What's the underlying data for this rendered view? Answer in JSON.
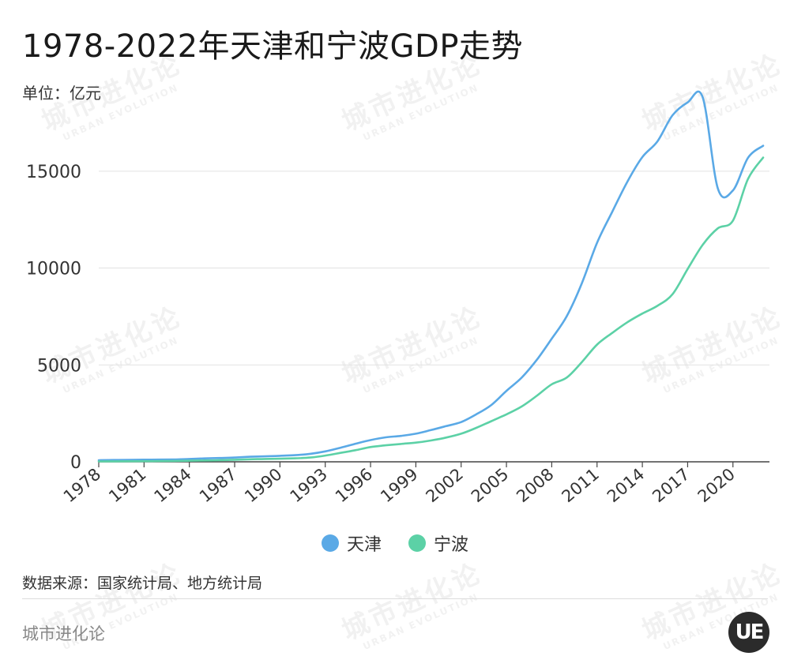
{
  "header": {
    "title": "1978-2022年天津和宁波GDP走势",
    "unit": "单位：亿元"
  },
  "chart_data": {
    "type": "line",
    "title": "1978-2022年天津和宁波GDP走势",
    "ylabel": "单位：亿元",
    "xlabel": "",
    "ylim": [
      0,
      16500
    ],
    "yticks": [
      0,
      5000,
      10000,
      15000
    ],
    "xticks": [
      1978,
      1981,
      1984,
      1987,
      1990,
      1993,
      1996,
      1999,
      2002,
      2005,
      2008,
      2011,
      2014,
      2017,
      2020
    ],
    "x": [
      1978,
      1979,
      1980,
      1981,
      1982,
      1983,
      1984,
      1985,
      1986,
      1987,
      1988,
      1989,
      1990,
      1991,
      1992,
      1993,
      1994,
      1995,
      1996,
      1997,
      1998,
      1999,
      2000,
      2001,
      2002,
      2003,
      2004,
      2005,
      2006,
      2007,
      2008,
      2009,
      2010,
      2011,
      2012,
      2013,
      2014,
      2015,
      2016,
      2017,
      2018,
      2019,
      2020,
      2021,
      2022
    ],
    "grid": true,
    "legend_position": "bottom",
    "series": [
      {
        "name": "天津",
        "color": "#5aa9e6",
        "values": [
          83,
          93,
          103,
          108,
          115,
          123,
          147,
          175,
          195,
          220,
          260,
          283,
          311,
          343,
          411,
          536,
          725,
          931,
          1122,
          1265,
          1336,
          1450,
          1639,
          1840,
          2051,
          2448,
          2932,
          3663,
          4338,
          5253,
          6354,
          7522,
          9224,
          11307,
          12894,
          14442,
          15727,
          16538,
          17885,
          18549,
          18810,
          14104,
          14008,
          15695,
          16311
        ]
      },
      {
        "name": "宁波",
        "color": "#5cd1a6",
        "values": [
          20,
          25,
          30,
          33,
          38,
          45,
          55,
          70,
          85,
          105,
          130,
          145,
          160,
          180,
          220,
          320,
          460,
          600,
          760,
          850,
          920,
          990,
          1100,
          1250,
          1450,
          1750,
          2100,
          2450,
          2850,
          3400,
          4000,
          4350,
          5150,
          6050,
          6650,
          7200,
          7650,
          8050,
          8650,
          9950,
          11200,
          12050,
          12450,
          14600,
          15700
        ]
      }
    ]
  },
  "legend": {
    "items": [
      {
        "label": "天津",
        "color": "#5aa9e6"
      },
      {
        "label": "宁波",
        "color": "#5cd1a6"
      }
    ]
  },
  "footer": {
    "source": "数据来源：国家统计局、地方统计局",
    "brand": "城市进化论",
    "logo_text": "UE"
  },
  "watermark": {
    "main": "城市进化论",
    "sub": "URBAN EVOLUTION"
  }
}
